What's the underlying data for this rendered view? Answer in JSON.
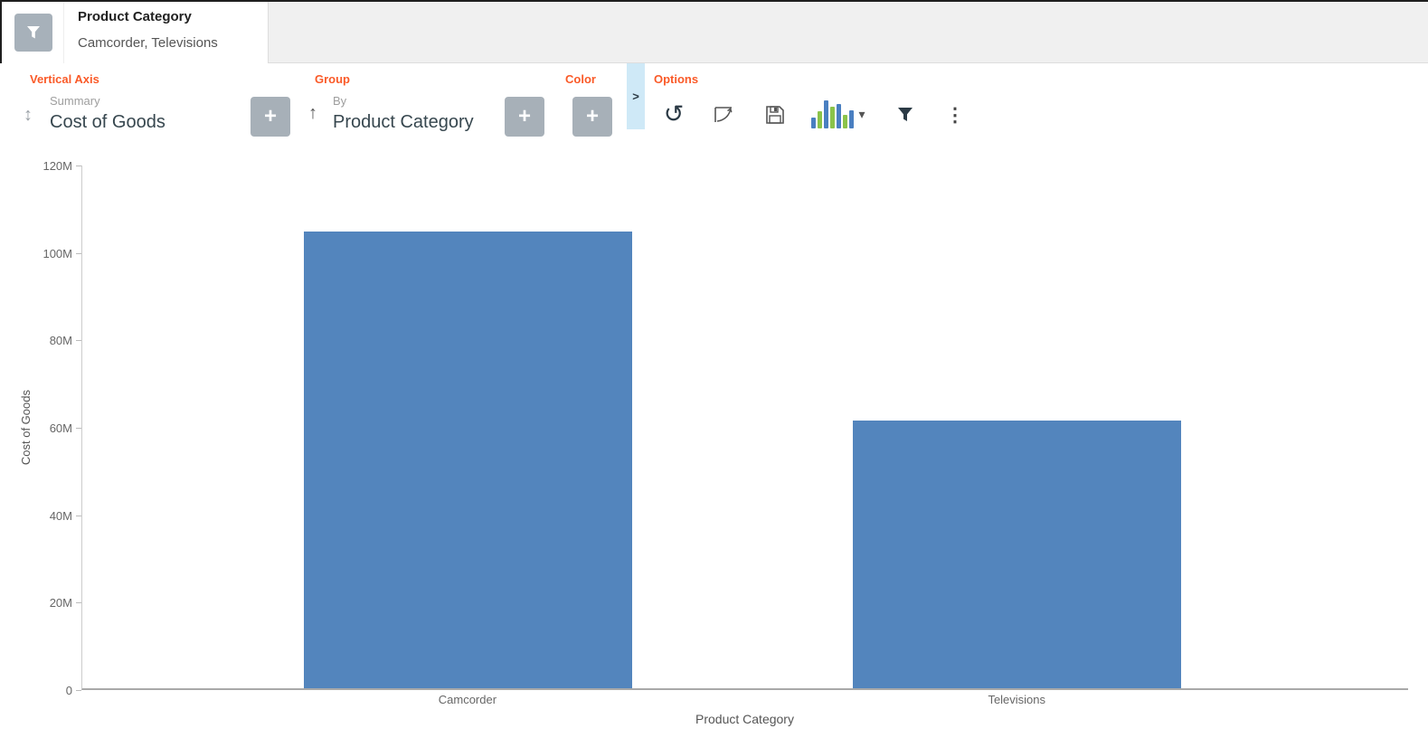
{
  "header": {
    "filter_chip": {
      "title": "Product Category",
      "values": "Camcorder, Televisions"
    }
  },
  "controls": {
    "vertical_axis": {
      "label": "Vertical Axis",
      "field_label": "Summary",
      "field_value": "Cost of Goods"
    },
    "group": {
      "label": "Group",
      "field_label": "By",
      "field_value": "Product Category"
    },
    "color": {
      "label": "Color"
    },
    "options": {
      "label": "Options"
    }
  },
  "icons": {
    "plus": "+",
    "chevron_right": ">",
    "caret_down": "▾",
    "ellipsis_v": "⋮",
    "arrow_updown": "↕",
    "arrow_up": "↑",
    "rotate_ccw": "↺"
  },
  "colors": {
    "accent_orange": "#fa5a28",
    "bar_blue": "#5385bd",
    "button_gray": "#a7b0b8",
    "strip_blue": "#cfe9f7",
    "icon_green": "#8bc34a",
    "icon_blue": "#4a7fc1"
  },
  "chart_data": {
    "type": "bar",
    "title": "",
    "categories": [
      "Camcorder",
      "Televisions"
    ],
    "values": [
      104.8,
      61.5
    ],
    "value_unit": "M",
    "xlabel": "Product Category",
    "ylabel": "Cost of Goods",
    "ylim": [
      0,
      120
    ],
    "ytick_step": 20,
    "yticks": [
      "0",
      "20M",
      "40M",
      "60M",
      "80M",
      "100M",
      "120M"
    ],
    "bar_color": "#5385bd",
    "grid": false,
    "legend": "none",
    "layout": {
      "bar_centers_pct": [
        29.1,
        70.5
      ],
      "bar_width_pct": 24.75
    }
  }
}
